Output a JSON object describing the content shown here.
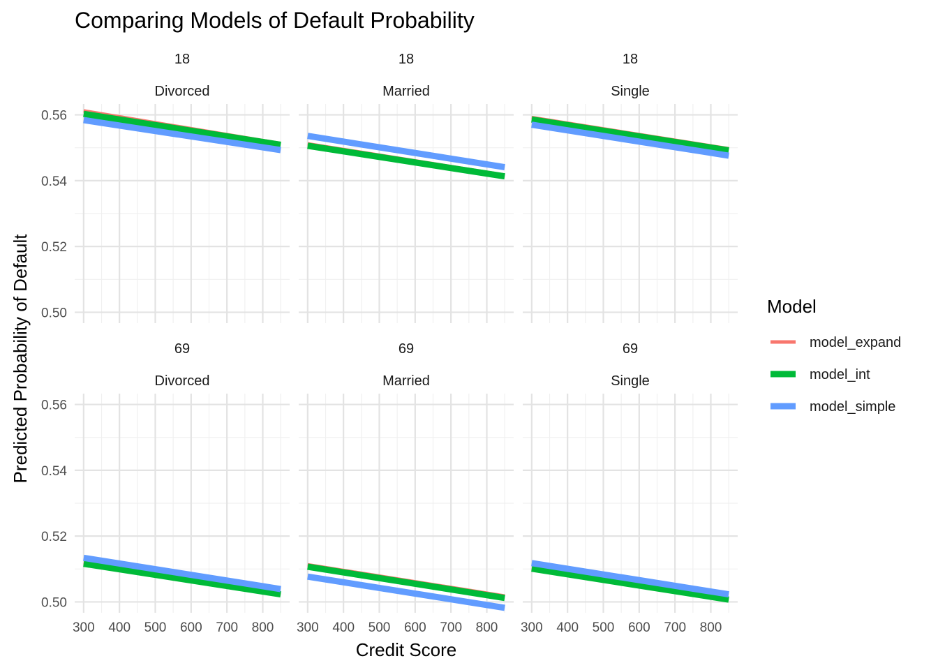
{
  "chart_data": {
    "type": "line",
    "title": "Comparing Models of Default Probability",
    "xlabel": "Credit Score",
    "ylabel": "Predicted Probability of Default",
    "xlim": [
      300,
      850
    ],
    "x_ticks": [
      300,
      400,
      500,
      600,
      700,
      800
    ],
    "x_tick_labels": [
      "300",
      "400",
      "500",
      "600",
      "700",
      "800"
    ],
    "ylim": [
      0.4967,
      0.5633
    ],
    "y_ticks": [
      0.5,
      0.52,
      0.54,
      0.56
    ],
    "y_tick_labels": [
      "0.50",
      "0.52",
      "0.54",
      "0.56"
    ],
    "grid": true,
    "legend": {
      "title": "Model",
      "position": "right",
      "entries": [
        {
          "name": "model_expand",
          "color": "#F8766D"
        },
        {
          "name": "model_int",
          "color": "#00BA38"
        },
        {
          "name": "model_simple",
          "color": "#619CFF"
        }
      ]
    },
    "facet_rows": [
      "18",
      "69"
    ],
    "facet_cols": [
      "Divorced",
      "Married",
      "Single"
    ],
    "panels": [
      {
        "age": "18",
        "marital": "Divorced",
        "series": [
          {
            "name": "model_expand",
            "x": [
              300,
              850
            ],
            "y": [
              0.5612,
              0.5513
            ]
          },
          {
            "name": "model_int",
            "x": [
              300,
              850
            ],
            "y": [
              0.5603,
              0.5509
            ]
          },
          {
            "name": "model_simple",
            "x": [
              300,
              850
            ],
            "y": [
              0.5584,
              0.5493
            ]
          }
        ]
      },
      {
        "age": "18",
        "marital": "Married",
        "series": [
          {
            "name": "model_expand",
            "x": [
              300,
              850
            ],
            "y": [
              0.5512,
              0.5417
            ]
          },
          {
            "name": "model_int",
            "x": [
              300,
              850
            ],
            "y": [
              0.5506,
              0.5413
            ]
          },
          {
            "name": "model_simple",
            "x": [
              300,
              850
            ],
            "y": [
              0.5536,
              0.5441
            ]
          }
        ]
      },
      {
        "age": "18",
        "marital": "Single",
        "series": [
          {
            "name": "model_expand",
            "x": [
              300,
              850
            ],
            "y": [
              0.5592,
              0.5497
            ]
          },
          {
            "name": "model_int",
            "x": [
              300,
              850
            ],
            "y": [
              0.5586,
              0.5492
            ]
          },
          {
            "name": "model_simple",
            "x": [
              300,
              850
            ],
            "y": [
              0.557,
              0.5476
            ]
          }
        ]
      },
      {
        "age": "69",
        "marital": "Divorced",
        "series": [
          {
            "name": "model_expand",
            "x": [
              300,
              850
            ],
            "y": [
              0.5119,
              0.5024
            ]
          },
          {
            "name": "model_int",
            "x": [
              300,
              850
            ],
            "y": [
              0.5116,
              0.5023
            ]
          },
          {
            "name": "model_simple",
            "x": [
              300,
              850
            ],
            "y": [
              0.5134,
              0.5039
            ]
          }
        ]
      },
      {
        "age": "69",
        "marital": "Married",
        "series": [
          {
            "name": "model_expand",
            "x": [
              300,
              850
            ],
            "y": [
              0.5113,
              0.5018
            ]
          },
          {
            "name": "model_int",
            "x": [
              300,
              850
            ],
            "y": [
              0.5107,
              0.5012
            ]
          },
          {
            "name": "model_simple",
            "x": [
              300,
              850
            ],
            "y": [
              0.5077,
              0.4982
            ]
          }
        ]
      },
      {
        "age": "69",
        "marital": "Single",
        "series": [
          {
            "name": "model_expand",
            "x": [
              300,
              850
            ],
            "y": [
              0.5103,
              0.5008
            ]
          },
          {
            "name": "model_int",
            "x": [
              300,
              850
            ],
            "y": [
              0.5101,
              0.5007
            ]
          },
          {
            "name": "model_simple",
            "x": [
              300,
              850
            ],
            "y": [
              0.5118,
              0.5023
            ]
          }
        ]
      }
    ]
  }
}
